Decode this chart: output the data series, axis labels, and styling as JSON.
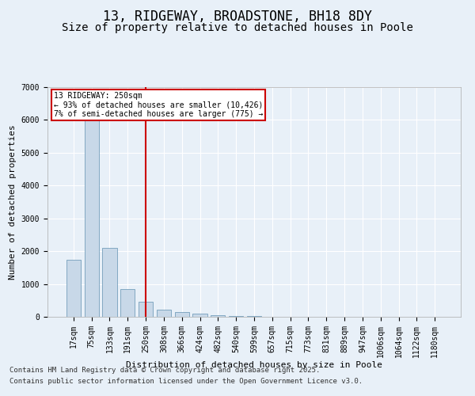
{
  "title": "13, RIDGEWAY, BROADSTONE, BH18 8DY",
  "subtitle": "Size of property relative to detached houses in Poole",
  "xlabel": "Distribution of detached houses by size in Poole",
  "ylabel": "Number of detached properties",
  "categories": [
    "17sqm",
    "75sqm",
    "133sqm",
    "191sqm",
    "250sqm",
    "308sqm",
    "366sqm",
    "424sqm",
    "482sqm",
    "540sqm",
    "599sqm",
    "657sqm",
    "715sqm",
    "773sqm",
    "831sqm",
    "889sqm",
    "947sqm",
    "1006sqm",
    "1064sqm",
    "1122sqm",
    "1180sqm"
  ],
  "values": [
    1750,
    6050,
    2100,
    850,
    450,
    220,
    150,
    100,
    60,
    35,
    20,
    10,
    8,
    5,
    3,
    2,
    1,
    1,
    1,
    0,
    0
  ],
  "bar_color": "#c8d8e8",
  "bar_edge_color": "#6090b0",
  "vline_x": 4,
  "vline_color": "#cc0000",
  "annotation_text": "13 RIDGEWAY: 250sqm\n← 93% of detached houses are smaller (10,426)\n7% of semi-detached houses are larger (775) →",
  "annotation_box_color": "#cc0000",
  "annotation_text_color": "#000000",
  "ylim": [
    0,
    7000
  ],
  "yticks": [
    0,
    1000,
    2000,
    3000,
    4000,
    5000,
    6000,
    7000
  ],
  "bg_color": "#e8f0f8",
  "plot_bg_color": "#e8f0f8",
  "footer_line1": "Contains HM Land Registry data © Crown copyright and database right 2025.",
  "footer_line2": "Contains public sector information licensed under the Open Government Licence v3.0.",
  "title_fontsize": 12,
  "subtitle_fontsize": 10,
  "axis_label_fontsize": 8,
  "tick_fontsize": 7,
  "annotation_fontsize": 7,
  "footer_fontsize": 6.5
}
